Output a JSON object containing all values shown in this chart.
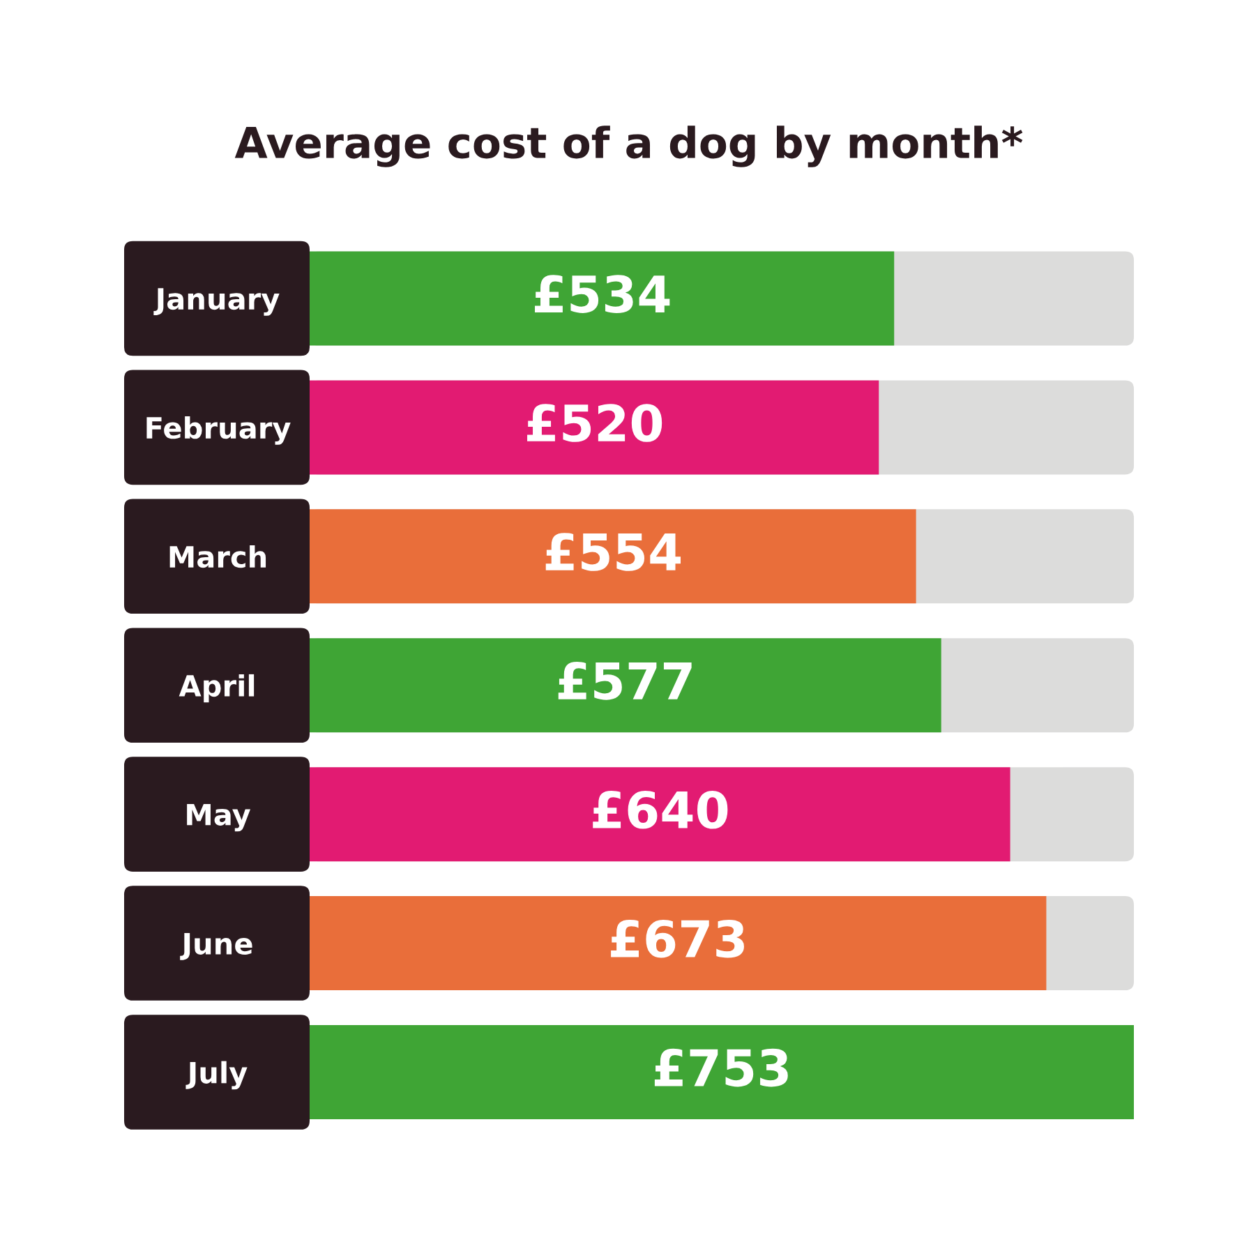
{
  "chart_data": {
    "type": "bar",
    "orientation": "horizontal",
    "title": "Average cost of a dog by month*",
    "categories": [
      "January",
      "February",
      "March",
      "April",
      "May",
      "June",
      "July"
    ],
    "values": [
      534,
      520,
      554,
      577,
      640,
      673,
      753
    ],
    "value_labels": [
      "£534",
      "£520",
      "£554",
      "£577",
      "£640",
      "£673",
      "£753"
    ],
    "colors": [
      "#3fa535",
      "#e21b72",
      "#e96e3a",
      "#3fa535",
      "#e21b72",
      "#e96e3a",
      "#3fa535"
    ],
    "xlim": [
      0,
      753
    ],
    "tick_labels": "y",
    "grid": false,
    "legend": false
  }
}
